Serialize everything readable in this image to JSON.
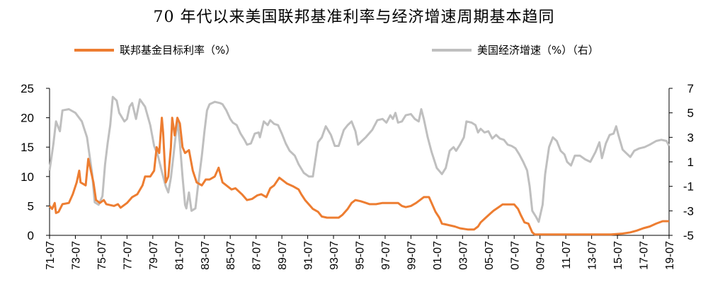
{
  "chart_data": {
    "type": "line",
    "title": "70 年代以来美国联邦基准利率与经济增速周期基本趋同",
    "x_tick_labels": [
      "71-07",
      "73-07",
      "75-07",
      "77-07",
      "79-07",
      "81-07",
      "83-07",
      "85-07",
      "87-07",
      "89-07",
      "91-07",
      "93-07",
      "95-07",
      "97-07",
      "99-07",
      "01-07",
      "03-07",
      "05-07",
      "07-07",
      "09-07",
      "11-07",
      "13-07",
      "15-07",
      "17-07",
      "19-07"
    ],
    "left_axis": {
      "ylim": [
        0,
        25
      ],
      "ticks": [
        "0",
        "5",
        "10",
        "15",
        "20",
        "25"
      ]
    },
    "right_axis": {
      "ylim": [
        -5,
        7
      ],
      "ticks": [
        "-5",
        "-3",
        "-1",
        "1",
        "3",
        "5",
        "7"
      ]
    },
    "legend_position": "top",
    "series": [
      {
        "name": "联邦基金目标利率（%）",
        "axis": "left",
        "color": "#ED7D31",
        "points": [
          [
            1971.5,
            5
          ],
          [
            1971.7,
            4.5
          ],
          [
            1971.9,
            5.5
          ],
          [
            1972.0,
            3.8
          ],
          [
            1972.2,
            4
          ],
          [
            1972.5,
            5.3
          ],
          [
            1973.0,
            5.5
          ],
          [
            1973.3,
            7
          ],
          [
            1973.6,
            9
          ],
          [
            1973.8,
            11
          ],
          [
            1973.9,
            9
          ],
          [
            1974.3,
            8.5
          ],
          [
            1974.5,
            13
          ],
          [
            1974.7,
            11
          ],
          [
            1974.9,
            9
          ],
          [
            1975.1,
            6
          ],
          [
            1975.4,
            5.5
          ],
          [
            1975.7,
            6
          ],
          [
            1975.9,
            5.3
          ],
          [
            1976.5,
            5
          ],
          [
            1976.8,
            5.3
          ],
          [
            1977.0,
            4.7
          ],
          [
            1977.5,
            5.5
          ],
          [
            1977.9,
            6.5
          ],
          [
            1978.3,
            7
          ],
          [
            1978.7,
            8.5
          ],
          [
            1978.9,
            10
          ],
          [
            1979.3,
            10
          ],
          [
            1979.6,
            11
          ],
          [
            1979.8,
            15
          ],
          [
            1980.0,
            14
          ],
          [
            1980.2,
            20
          ],
          [
            1980.3,
            17.5
          ],
          [
            1980.5,
            9
          ],
          [
            1980.7,
            10
          ],
          [
            1980.9,
            15
          ],
          [
            1981.0,
            20
          ],
          [
            1981.2,
            17
          ],
          [
            1981.4,
            20
          ],
          [
            1981.6,
            19
          ],
          [
            1981.8,
            15
          ],
          [
            1982.0,
            14
          ],
          [
            1982.3,
            14.5
          ],
          [
            1982.6,
            11
          ],
          [
            1982.9,
            9
          ],
          [
            1983.3,
            8.5
          ],
          [
            1983.6,
            9.5
          ],
          [
            1983.9,
            9.5
          ],
          [
            1984.3,
            10
          ],
          [
            1984.6,
            11.5
          ],
          [
            1984.9,
            9
          ],
          [
            1985.2,
            8.5
          ],
          [
            1985.6,
            7.8
          ],
          [
            1985.9,
            8
          ],
          [
            1986.4,
            7
          ],
          [
            1986.8,
            6
          ],
          [
            1987.2,
            6.2
          ],
          [
            1987.6,
            6.8
          ],
          [
            1987.9,
            7
          ],
          [
            1988.3,
            6.5
          ],
          [
            1988.6,
            8
          ],
          [
            1988.9,
            8.5
          ],
          [
            1989.3,
            9.8
          ],
          [
            1989.6,
            9.3
          ],
          [
            1989.9,
            8.8
          ],
          [
            1990.4,
            8.3
          ],
          [
            1990.8,
            7.8
          ],
          [
            1991.0,
            7
          ],
          [
            1991.3,
            6
          ],
          [
            1991.7,
            5
          ],
          [
            1991.9,
            4.5
          ],
          [
            1992.3,
            4
          ],
          [
            1992.6,
            3.2
          ],
          [
            1993.0,
            3
          ],
          [
            1993.5,
            3
          ],
          [
            1993.9,
            3
          ],
          [
            1994.2,
            3.5
          ],
          [
            1994.6,
            4.5
          ],
          [
            1994.9,
            5.5
          ],
          [
            1995.2,
            6
          ],
          [
            1995.6,
            5.8
          ],
          [
            1995.9,
            5.6
          ],
          [
            1996.3,
            5.3
          ],
          [
            1996.8,
            5.3
          ],
          [
            1997.3,
            5.5
          ],
          [
            1997.9,
            5.5
          ],
          [
            1998.5,
            5.5
          ],
          [
            1998.8,
            5
          ],
          [
            1999.1,
            4.8
          ],
          [
            1999.5,
            5
          ],
          [
            1999.9,
            5.5
          ],
          [
            2000.2,
            6
          ],
          [
            2000.5,
            6.5
          ],
          [
            2000.9,
            6.5
          ],
          [
            2001.1,
            5.5
          ],
          [
            2001.4,
            4
          ],
          [
            2001.7,
            3
          ],
          [
            2001.9,
            2
          ],
          [
            2002.3,
            1.8
          ],
          [
            2002.9,
            1.5
          ],
          [
            2003.3,
            1.2
          ],
          [
            2003.9,
            1
          ],
          [
            2004.4,
            1
          ],
          [
            2004.7,
            1.5
          ],
          [
            2004.9,
            2.2
          ],
          [
            2005.3,
            3
          ],
          [
            2005.7,
            3.8
          ],
          [
            2005.9,
            4.2
          ],
          [
            2006.3,
            4.8
          ],
          [
            2006.6,
            5.25
          ],
          [
            2007.0,
            5.25
          ],
          [
            2007.5,
            5.25
          ],
          [
            2007.8,
            4.5
          ],
          [
            2008.0,
            3.5
          ],
          [
            2008.3,
            2.2
          ],
          [
            2008.6,
            2
          ],
          [
            2008.9,
            0.5
          ],
          [
            2009.1,
            0.15
          ],
          [
            2011.0,
            0.15
          ],
          [
            2013.0,
            0.15
          ],
          [
            2015.0,
            0.15
          ],
          [
            2015.9,
            0.3
          ],
          [
            2016.5,
            0.5
          ],
          [
            2017.0,
            0.8
          ],
          [
            2017.5,
            1.2
          ],
          [
            2018.0,
            1.5
          ],
          [
            2018.5,
            2
          ],
          [
            2019.0,
            2.4
          ],
          [
            2019.5,
            2.4
          ]
        ]
      },
      {
        "name": "美国经济增速（%）（右）",
        "axis": "right",
        "color": "#BFBFBF",
        "points": [
          [
            1971.5,
            0.3
          ],
          [
            1971.8,
            2.5
          ],
          [
            1972.0,
            4.3
          ],
          [
            1972.3,
            3.5
          ],
          [
            1972.5,
            5.2
          ],
          [
            1973.0,
            5.3
          ],
          [
            1973.5,
            5
          ],
          [
            1974.0,
            4.3
          ],
          [
            1974.4,
            3
          ],
          [
            1974.8,
            0
          ],
          [
            1975.0,
            -2.3
          ],
          [
            1975.3,
            -2.5
          ],
          [
            1975.6,
            -1.8
          ],
          [
            1975.8,
            0.8
          ],
          [
            1976.0,
            2.5
          ],
          [
            1976.2,
            4
          ],
          [
            1976.4,
            6.3
          ],
          [
            1976.7,
            6
          ],
          [
            1976.9,
            5
          ],
          [
            1977.3,
            4.3
          ],
          [
            1977.5,
            4.5
          ],
          [
            1977.7,
            5.5
          ],
          [
            1977.9,
            5.8
          ],
          [
            1978.2,
            4.5
          ],
          [
            1978.5,
            6.1
          ],
          [
            1978.9,
            5.5
          ],
          [
            1979.3,
            4
          ],
          [
            1979.6,
            2.3
          ],
          [
            1979.9,
            1.5
          ],
          [
            1980.2,
            0.2
          ],
          [
            1980.5,
            -1
          ],
          [
            1980.7,
            -1.5
          ],
          [
            1980.9,
            -0.3
          ],
          [
            1981.1,
            1.5
          ],
          [
            1981.4,
            4.4
          ],
          [
            1981.6,
            2.5
          ],
          [
            1981.8,
            -0.2
          ],
          [
            1982.0,
            -2.5
          ],
          [
            1982.1,
            -2.8
          ],
          [
            1982.3,
            -1.5
          ],
          [
            1982.5,
            -3
          ],
          [
            1982.8,
            -2.8
          ],
          [
            1983.0,
            -1
          ],
          [
            1983.3,
            1.5
          ],
          [
            1983.5,
            3.5
          ],
          [
            1983.7,
            5.2
          ],
          [
            1983.9,
            5.7
          ],
          [
            1984.3,
            5.9
          ],
          [
            1984.7,
            5.8
          ],
          [
            1984.9,
            5.7
          ],
          [
            1985.2,
            5.2
          ],
          [
            1985.5,
            4.5
          ],
          [
            1985.7,
            4.2
          ],
          [
            1986.0,
            4
          ],
          [
            1986.3,
            3.3
          ],
          [
            1986.6,
            2.8
          ],
          [
            1986.8,
            2.4
          ],
          [
            1987.1,
            2.5
          ],
          [
            1987.4,
            3.3
          ],
          [
            1987.7,
            3.4
          ],
          [
            1987.8,
            3
          ],
          [
            1988.1,
            4.3
          ],
          [
            1988.4,
            4
          ],
          [
            1988.6,
            4.4
          ],
          [
            1988.9,
            4.1
          ],
          [
            1989.2,
            4
          ],
          [
            1989.5,
            3.3
          ],
          [
            1989.8,
            2.5
          ],
          [
            1990.1,
            1.9
          ],
          [
            1990.5,
            1.5
          ],
          [
            1990.8,
            0.8
          ],
          [
            1991.2,
            0.1
          ],
          [
            1991.6,
            -0.2
          ],
          [
            1991.9,
            -0.2
          ],
          [
            1992.3,
            2.6
          ],
          [
            1992.6,
            3
          ],
          [
            1992.9,
            3.9
          ],
          [
            1993.3,
            3.2
          ],
          [
            1993.6,
            2.3
          ],
          [
            1993.9,
            2.3
          ],
          [
            1994.3,
            3.6
          ],
          [
            1994.6,
            4
          ],
          [
            1994.9,
            4.3
          ],
          [
            1995.2,
            3.5
          ],
          [
            1995.4,
            2.4
          ],
          [
            1995.7,
            2.7
          ],
          [
            1996.0,
            3
          ],
          [
            1996.5,
            3.6
          ],
          [
            1996.9,
            4.4
          ],
          [
            1997.3,
            4.5
          ],
          [
            1997.6,
            4.2
          ],
          [
            1997.9,
            4.8
          ],
          [
            1998.1,
            4.5
          ],
          [
            1998.3,
            5
          ],
          [
            1998.5,
            4.2
          ],
          [
            1998.8,
            4.3
          ],
          [
            1999.1,
            4.8
          ],
          [
            1999.5,
            4.9
          ],
          [
            1999.8,
            4.5
          ],
          [
            2000.1,
            4.3
          ],
          [
            2000.3,
            5.3
          ],
          [
            2000.5,
            4.5
          ],
          [
            2000.8,
            3
          ],
          [
            2001.1,
            1.8
          ],
          [
            2001.5,
            0.5
          ],
          [
            2001.9,
            0
          ],
          [
            2002.2,
            0.5
          ],
          [
            2002.5,
            1.9
          ],
          [
            2002.8,
            2.2
          ],
          [
            2003.0,
            1.9
          ],
          [
            2003.3,
            2.4
          ],
          [
            2003.6,
            3
          ],
          [
            2003.8,
            4.3
          ],
          [
            2004.2,
            4.2
          ],
          [
            2004.5,
            4
          ],
          [
            2004.7,
            3.4
          ],
          [
            2004.9,
            3.7
          ],
          [
            2005.2,
            3.4
          ],
          [
            2005.5,
            3.5
          ],
          [
            2005.8,
            2.9
          ],
          [
            2006.1,
            3.2
          ],
          [
            2006.4,
            2.9
          ],
          [
            2006.7,
            2.8
          ],
          [
            2007.0,
            2.4
          ],
          [
            2007.3,
            2.3
          ],
          [
            2007.6,
            2.1
          ],
          [
            2007.9,
            1.6
          ],
          [
            2008.2,
            1
          ],
          [
            2008.5,
            0.3
          ],
          [
            2008.7,
            -1
          ],
          [
            2008.9,
            -3
          ],
          [
            2009.2,
            -3.5
          ],
          [
            2009.4,
            -3.9
          ],
          [
            2009.7,
            -2.5
          ],
          [
            2009.9,
            0
          ],
          [
            2010.2,
            2.2
          ],
          [
            2010.5,
            3
          ],
          [
            2010.8,
            2.7
          ],
          [
            2011.1,
            1.9
          ],
          [
            2011.4,
            1.6
          ],
          [
            2011.6,
            1
          ],
          [
            2011.9,
            0.7
          ],
          [
            2012.2,
            1.5
          ],
          [
            2012.6,
            1.5
          ],
          [
            2013.0,
            1.2
          ],
          [
            2013.4,
            1
          ],
          [
            2013.8,
            1.8
          ],
          [
            2014.1,
            2.6
          ],
          [
            2014.3,
            1.3
          ],
          [
            2014.6,
            2.5
          ],
          [
            2014.9,
            3.2
          ],
          [
            2015.2,
            3.3
          ],
          [
            2015.4,
            3.9
          ],
          [
            2015.6,
            3.1
          ],
          [
            2015.9,
            2
          ],
          [
            2016.2,
            1.7
          ],
          [
            2016.5,
            1.4
          ],
          [
            2016.8,
            1.9
          ],
          [
            2017.2,
            2.1
          ],
          [
            2017.6,
            2.2
          ],
          [
            2018.0,
            2.4
          ],
          [
            2018.5,
            2.7
          ],
          [
            2018.9,
            2.8
          ],
          [
            2019.3,
            2.7
          ],
          [
            2019.5,
            2.3
          ]
        ]
      }
    ]
  }
}
